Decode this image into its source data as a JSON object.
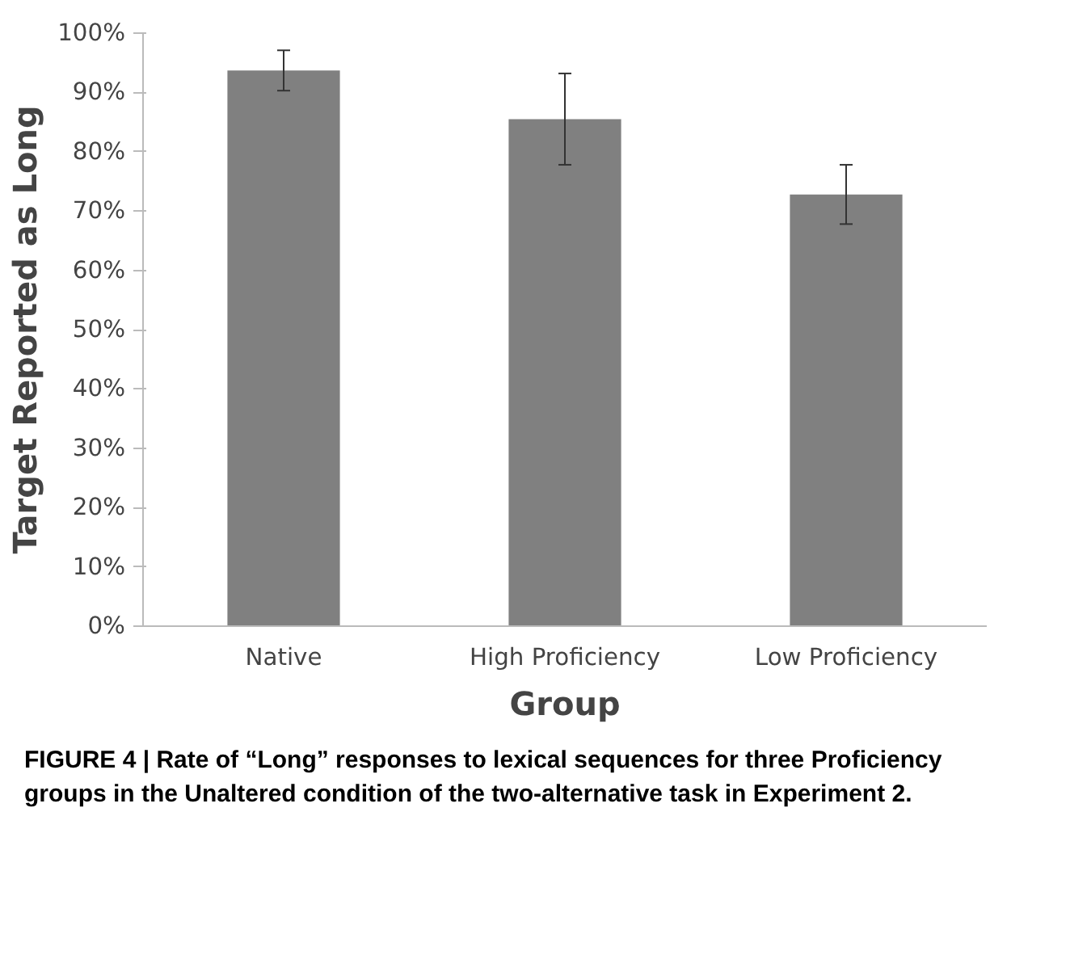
{
  "chart_data": {
    "type": "bar",
    "xlabel": "Group",
    "ylabel": "Target Reported as Long",
    "categories": [
      "Native",
      "High Proficiency",
      "Low Proficiency"
    ],
    "values": [
      93.7,
      85.5,
      72.8
    ],
    "color": "#808080",
    "errors": [
      3.4,
      7.7,
      5.0
    ],
    "ylim": [
      0,
      100
    ],
    "yticks": [
      {
        "value": 0,
        "label": "0%"
      },
      {
        "value": 10,
        "label": "10%"
      },
      {
        "value": 20,
        "label": "20%"
      },
      {
        "value": 30,
        "label": "30%"
      },
      {
        "value": 40,
        "label": "40%"
      },
      {
        "value": 50,
        "label": "50%"
      },
      {
        "value": 60,
        "label": "60%"
      },
      {
        "value": 70,
        "label": "70%"
      },
      {
        "value": 80,
        "label": "80%"
      },
      {
        "value": 90,
        "label": "90%"
      },
      {
        "value": 100,
        "label": "100%"
      }
    ],
    "grid": false,
    "annotations": [
      "FIGURE 4 | Rate of “Long” responses to lexical sequences for three Proficiency groups in the Unaltered condition of the two-alternative task in Experiment 2."
    ]
  }
}
